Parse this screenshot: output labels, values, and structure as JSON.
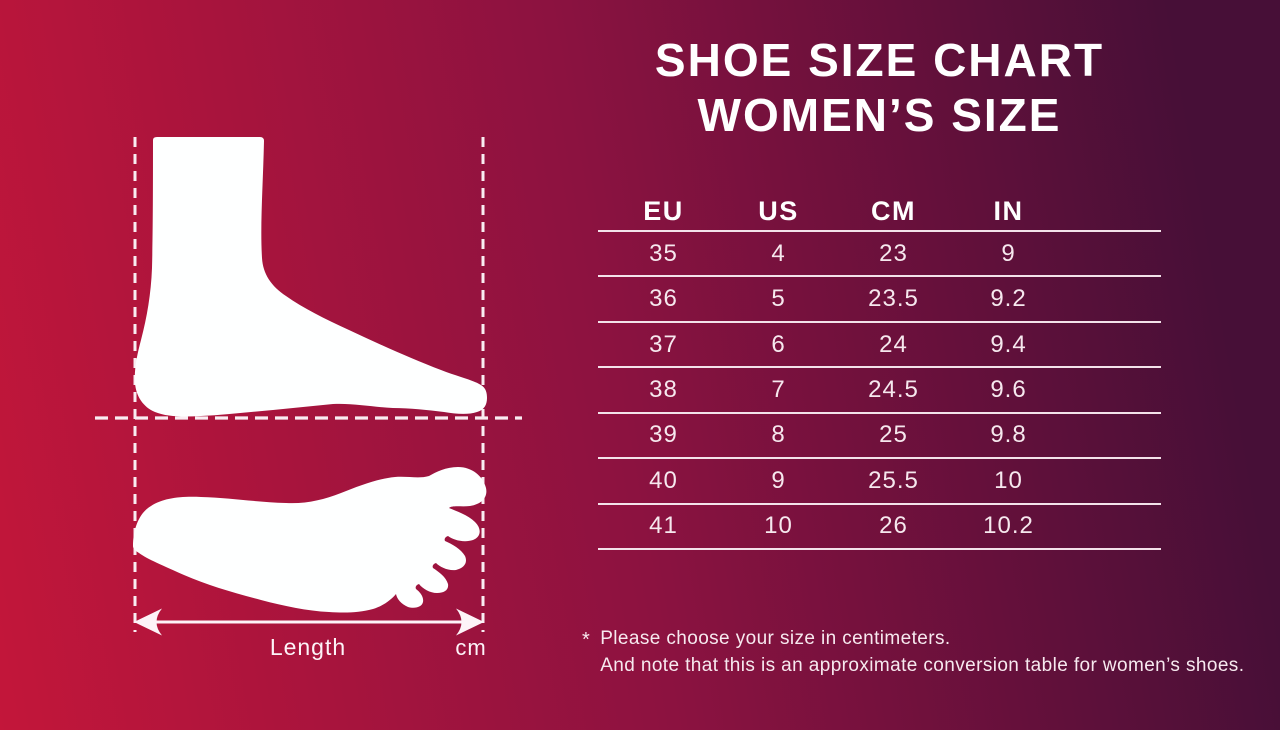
{
  "title": {
    "line1": "SHOE SIZE CHART",
    "line2": "WOMEN’S SIZE"
  },
  "chart_data": {
    "type": "table",
    "title": "Shoe Size Chart — Women’s Size",
    "columns": [
      "EU",
      "US",
      "CM",
      "IN"
    ],
    "rows": [
      [
        35,
        4,
        23,
        9
      ],
      [
        36,
        5,
        23.5,
        9.2
      ],
      [
        37,
        6,
        24,
        9.4
      ],
      [
        38,
        7,
        24.5,
        9.6
      ],
      [
        39,
        8,
        25,
        9.8
      ],
      [
        40,
        9,
        25.5,
        10
      ],
      [
        41,
        10,
        26,
        10.2
      ]
    ]
  },
  "measurement": {
    "length_label": "Length",
    "unit_label": "cm"
  },
  "footnote": {
    "marker": "*",
    "line1": "Please choose your size in centimeters.",
    "line2": "And note that this is an approximate conversion table for women’s shoes."
  },
  "colors": {
    "gradient_start": "#c3163a",
    "gradient_mid": "#8c1240",
    "gradient_end": "#470f37",
    "line": "#f3e2ea",
    "text_light": "#f6e8ee",
    "white": "#ffffff",
    "foot_fill": "#feffff",
    "dash_color": "#f9edf2"
  }
}
